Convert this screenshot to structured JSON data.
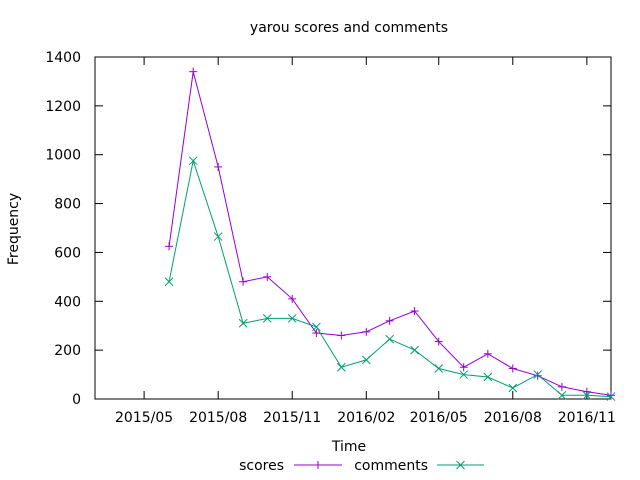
{
  "chart_data": {
    "type": "line",
    "title": "yarou scores and comments",
    "xlabel": "Time",
    "ylabel": "Frequency",
    "ylim": [
      0,
      1400
    ],
    "yticks": [
      0,
      200,
      400,
      600,
      800,
      1000,
      1200,
      1400
    ],
    "xlim": [
      "2015-03-01",
      "2016-12-01"
    ],
    "xticks": [
      {
        "label": "2015/05",
        "date": "2015-05-01"
      },
      {
        "label": "2015/08",
        "date": "2015-08-01"
      },
      {
        "label": "2015/11",
        "date": "2015-11-01"
      },
      {
        "label": "2016/02",
        "date": "2016-02-01"
      },
      {
        "label": "2016/05",
        "date": "2016-05-01"
      },
      {
        "label": "2016/08",
        "date": "2016-08-01"
      },
      {
        "label": "2016/11",
        "date": "2016-11-01"
      }
    ],
    "x": [
      "2015-06-01",
      "2015-07-01",
      "2015-08-01",
      "2015-09-01",
      "2015-10-01",
      "2015-11-01",
      "2015-12-01",
      "2016-01-01",
      "2016-02-01",
      "2016-03-01",
      "2016-04-01",
      "2016-05-01",
      "2016-06-01",
      "2016-07-01",
      "2016-08-01",
      "2016-09-01",
      "2016-10-01",
      "2016-11-01",
      "2016-12-01"
    ],
    "grid": false,
    "legend_position": "bottom",
    "series": [
      {
        "name": "scores",
        "color": "#9400d3",
        "marker": "plus",
        "values": [
          625,
          1340,
          950,
          480,
          500,
          410,
          270,
          260,
          275,
          320,
          360,
          235,
          130,
          185,
          125,
          95,
          50,
          30,
          15
        ]
      },
      {
        "name": "comments",
        "color": "#009e73",
        "marker": "cross",
        "values": [
          480,
          975,
          665,
          310,
          330,
          330,
          295,
          130,
          160,
          245,
          200,
          125,
          100,
          90,
          45,
          100,
          15,
          15,
          10
        ]
      }
    ]
  }
}
